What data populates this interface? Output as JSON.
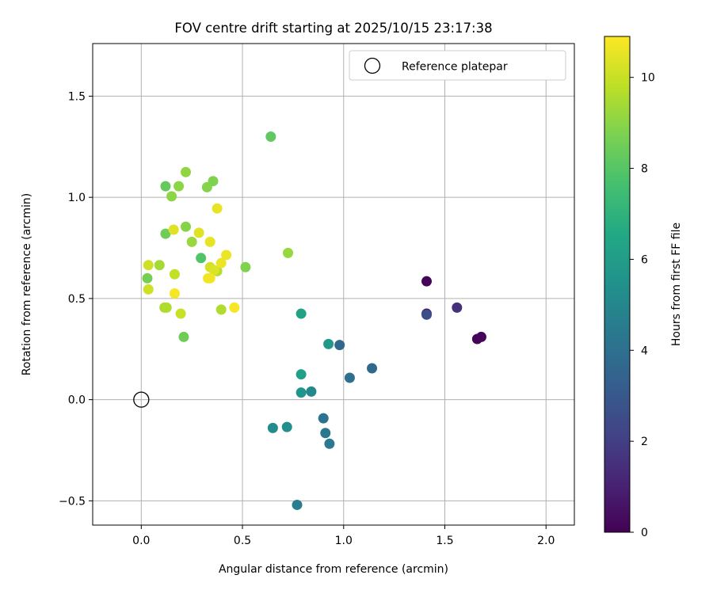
{
  "chart_data": {
    "type": "scatter",
    "title": "FOV centre drift starting at 2025/10/15 23:17:38",
    "xlabel": "Angular distance from reference (arcmin)",
    "ylabel": "Rotation from reference (arcmin)",
    "xlim": [
      -0.24,
      2.14
    ],
    "ylim": [
      -0.62,
      1.76
    ],
    "xticks": [
      0.0,
      0.5,
      1.0,
      1.5,
      2.0
    ],
    "xtick_labels": [
      "0.0",
      "0.5",
      "1.0",
      "1.5",
      "2.0"
    ],
    "yticks": [
      -0.5,
      0.0,
      0.5,
      1.0,
      1.5
    ],
    "ytick_labels": [
      "−0.5",
      "0.0",
      "0.5",
      "1.0",
      "1.5"
    ],
    "grid": true,
    "legend": {
      "position": "top-right",
      "entries": [
        "Reference platepar"
      ]
    },
    "reference_point": {
      "x": 0.0,
      "y": 0.0,
      "label": "Reference platepar"
    },
    "colorbar": {
      "label": "Hours from first FF file",
      "colormap": "viridis",
      "range": [
        0,
        10.9
      ],
      "ticks": [
        0,
        2,
        4,
        6,
        8,
        10
      ],
      "tick_labels": [
        "0",
        "2",
        "4",
        "6",
        "8",
        "10"
      ]
    },
    "points": [
      {
        "x": 1.41,
        "y": 0.585,
        "t": 0.1
      },
      {
        "x": 1.66,
        "y": 0.3,
        "t": 0.1
      },
      {
        "x": 1.68,
        "y": 0.31,
        "t": 0.2
      },
      {
        "x": 1.41,
        "y": 0.425,
        "t": 0.7
      },
      {
        "x": 1.56,
        "y": 0.455,
        "t": 1.5
      },
      {
        "x": 1.41,
        "y": 0.42,
        "t": 2.6
      },
      {
        "x": 0.98,
        "y": 0.27,
        "t": 3.6
      },
      {
        "x": 1.14,
        "y": 0.155,
        "t": 3.7
      },
      {
        "x": 1.03,
        "y": 0.108,
        "t": 4.0
      },
      {
        "x": 0.9,
        "y": -0.092,
        "t": 4.1
      },
      {
        "x": 0.91,
        "y": -0.165,
        "t": 4.3
      },
      {
        "x": 0.93,
        "y": -0.218,
        "t": 4.4
      },
      {
        "x": 0.77,
        "y": -0.52,
        "t": 4.6
      },
      {
        "x": 0.84,
        "y": 0.04,
        "t": 5.1
      },
      {
        "x": 0.65,
        "y": -0.14,
        "t": 5.2
      },
      {
        "x": 0.72,
        "y": -0.135,
        "t": 5.4
      },
      {
        "x": 0.79,
        "y": 0.035,
        "t": 5.6
      },
      {
        "x": 0.925,
        "y": 0.275,
        "t": 5.8
      },
      {
        "x": 0.79,
        "y": 0.125,
        "t": 6.1
      },
      {
        "x": 0.79,
        "y": 0.425,
        "t": 6.2
      },
      {
        "x": 0.295,
        "y": 0.7,
        "t": 7.9
      },
      {
        "x": 0.64,
        "y": 1.3,
        "t": 8.2
      },
      {
        "x": 0.12,
        "y": 1.055,
        "t": 8.3
      },
      {
        "x": 0.12,
        "y": 0.82,
        "t": 8.5
      },
      {
        "x": 0.21,
        "y": 0.31,
        "t": 8.5
      },
      {
        "x": 0.03,
        "y": 0.6,
        "t": 8.6
      },
      {
        "x": 0.515,
        "y": 0.655,
        "t": 8.8
      },
      {
        "x": 0.355,
        "y": 1.08,
        "t": 8.8
      },
      {
        "x": 0.325,
        "y": 1.05,
        "t": 8.9
      },
      {
        "x": 0.22,
        "y": 0.855,
        "t": 8.9
      },
      {
        "x": 0.185,
        "y": 1.055,
        "t": 9.0
      },
      {
        "x": 0.15,
        "y": 1.005,
        "t": 9.0
      },
      {
        "x": 0.22,
        "y": 1.125,
        "t": 9.1
      },
      {
        "x": 0.725,
        "y": 0.725,
        "t": 9.2
      },
      {
        "x": 0.25,
        "y": 0.78,
        "t": 9.2
      },
      {
        "x": 0.09,
        "y": 0.665,
        "t": 9.4
      },
      {
        "x": 0.115,
        "y": 0.455,
        "t": 9.5
      },
      {
        "x": 0.395,
        "y": 0.445,
        "t": 9.6
      },
      {
        "x": 0.125,
        "y": 0.455,
        "t": 9.6
      },
      {
        "x": 0.375,
        "y": 0.635,
        "t": 9.7
      },
      {
        "x": 0.165,
        "y": 0.62,
        "t": 9.9
      },
      {
        "x": 0.195,
        "y": 0.425,
        "t": 10.0
      },
      {
        "x": 0.035,
        "y": 0.545,
        "t": 10.1
      },
      {
        "x": 0.035,
        "y": 0.665,
        "t": 10.1
      },
      {
        "x": 0.34,
        "y": 0.655,
        "t": 10.2
      },
      {
        "x": 0.36,
        "y": 0.64,
        "t": 10.3
      },
      {
        "x": 0.285,
        "y": 0.825,
        "t": 10.4
      },
      {
        "x": 0.16,
        "y": 0.84,
        "t": 10.4
      },
      {
        "x": 0.34,
        "y": 0.78,
        "t": 10.5
      },
      {
        "x": 0.375,
        "y": 0.945,
        "t": 10.5
      },
      {
        "x": 0.395,
        "y": 0.675,
        "t": 10.6
      },
      {
        "x": 0.42,
        "y": 0.715,
        "t": 10.6
      },
      {
        "x": 0.33,
        "y": 0.6,
        "t": 10.7
      },
      {
        "x": 0.34,
        "y": 0.6,
        "t": 10.7
      },
      {
        "x": 0.46,
        "y": 0.455,
        "t": 10.8
      },
      {
        "x": 0.165,
        "y": 0.525,
        "t": 10.8
      }
    ]
  }
}
